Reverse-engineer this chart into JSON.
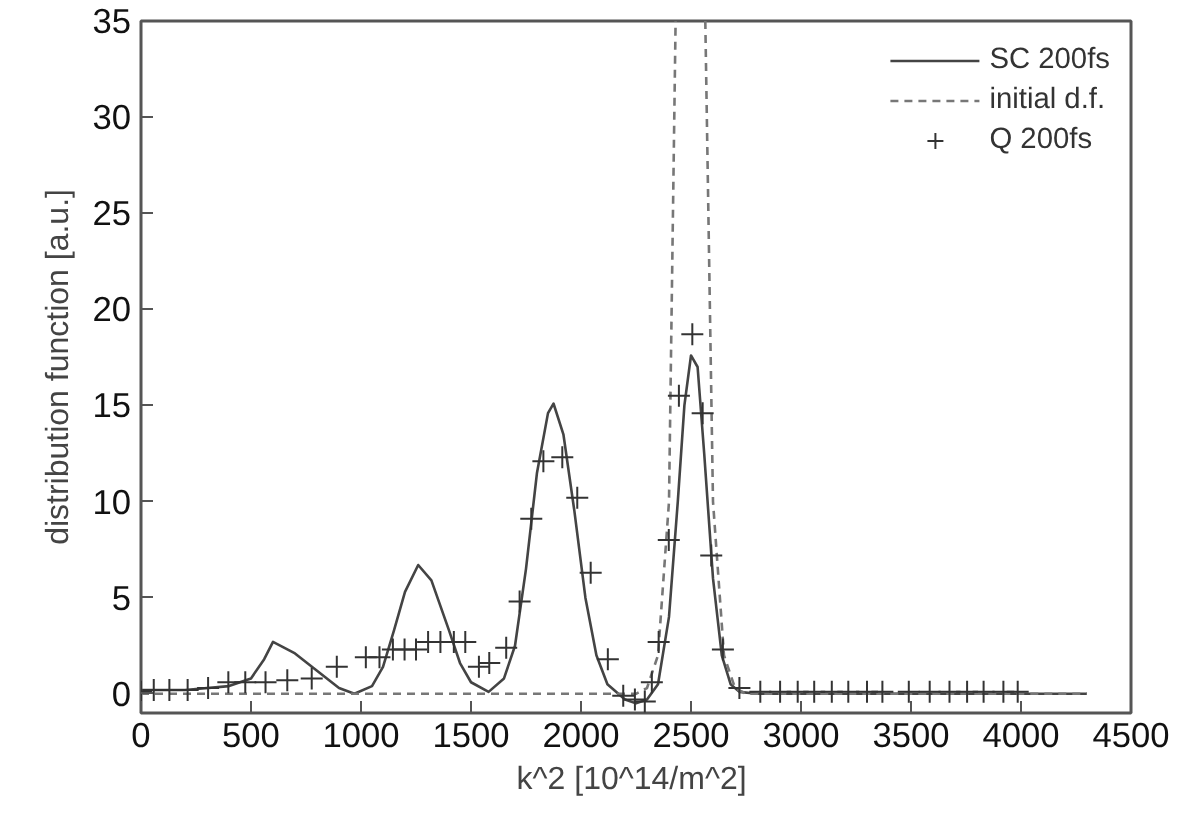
{
  "chart_data": {
    "type": "line",
    "xlabel": "k^2  [10^14/m^2]",
    "ylabel": "distribution function [a.u.]",
    "xlim": [
      0,
      4500
    ],
    "ylim": [
      -1,
      35
    ],
    "xticks": [
      0,
      500,
      1000,
      1500,
      2000,
      2500,
      3000,
      3500,
      4000,
      4500
    ],
    "yticks": [
      0,
      5,
      10,
      15,
      20,
      25,
      30,
      35
    ],
    "grid": false,
    "legend": "top right",
    "series": [
      {
        "name": "SC 200fs",
        "line_style": "solid",
        "marker": "none",
        "color": "#444444",
        "x": [
          0,
          200,
          400,
          500,
          560,
          600,
          650,
          700,
          800,
          900,
          970,
          1050,
          1100,
          1150,
          1200,
          1260,
          1320,
          1400,
          1450,
          1500,
          1580,
          1650,
          1700,
          1750,
          1800,
          1850,
          1875,
          1920,
          1970,
          2020,
          2070,
          2120,
          2200,
          2250,
          2300,
          2350,
          2400,
          2440,
          2470,
          2500,
          2530,
          2560,
          2600,
          2640,
          2680,
          2720,
          2800,
          4300
        ],
        "values": [
          0.2,
          0.2,
          0.4,
          0.8,
          1.8,
          2.7,
          2.4,
          2.1,
          1.2,
          0.3,
          0,
          0.4,
          1.4,
          3.3,
          5.3,
          6.7,
          5.9,
          3.3,
          1.6,
          0.6,
          0.1,
          0.8,
          2.5,
          6.5,
          11.5,
          14.6,
          15.1,
          13.5,
          9.5,
          5,
          2,
          0.5,
          -0.3,
          -0.5,
          -0.3,
          0.5,
          4,
          10,
          15,
          17.6,
          17,
          12.5,
          6,
          2,
          0.5,
          0.1,
          0,
          0
        ]
      },
      {
        "name": "initial d.f.",
        "type": "line",
        "line_style": "dashed",
        "marker": "none",
        "color": "#777777",
        "x": [
          0,
          2250,
          2300,
          2350,
          2400,
          2430,
          2497,
          2565,
          2600,
          2650,
          2700,
          2750,
          4300
        ],
        "values": [
          0,
          0,
          0.3,
          2,
          10,
          35,
          null,
          35,
          10,
          2,
          0.3,
          0,
          0
        ]
      },
      {
        "name": "Q 200fs",
        "type": "scatter",
        "marker": "cross",
        "color": "#333333",
        "x": [
          0,
          58,
          129,
          212,
          305,
          397,
          474,
          566,
          665,
          776,
          890,
          1022,
          1084,
          1145,
          1198,
          1250,
          1305,
          1361,
          1422,
          1474,
          1536,
          1583,
          1660,
          1721,
          1774,
          1829,
          1915,
          1983,
          2044,
          2122,
          2192,
          2245,
          2290,
          2322,
          2353,
          2399,
          2445,
          2506,
          2553,
          2592,
          2645,
          2720,
          2815,
          2905,
          2985,
          3060,
          3140,
          3215,
          3300,
          3370,
          3490,
          3585,
          3675,
          3755,
          3830,
          3920,
          3985
        ],
        "values": [
          0.1,
          0.2,
          0.2,
          0.2,
          0.3,
          0.6,
          0.6,
          0.6,
          0.7,
          0.8,
          1.4,
          1.9,
          1.9,
          2.3,
          2.3,
          2.3,
          2.7,
          2.7,
          2.7,
          2.7,
          1.4,
          1.6,
          2.4,
          4.8,
          9.1,
          12.1,
          12.3,
          10.2,
          6.3,
          1.8,
          -0.1,
          -0.3,
          -0.4,
          0.6,
          2.7,
          8,
          15.5,
          18.7,
          14.6,
          7.2,
          2.3,
          0.3,
          0.1,
          0.1,
          0.1,
          0.1,
          0.1,
          0.1,
          0.1,
          0.1,
          0.1,
          0.1,
          0.1,
          0.1,
          0.1,
          0.1,
          0.1
        ]
      }
    ]
  }
}
